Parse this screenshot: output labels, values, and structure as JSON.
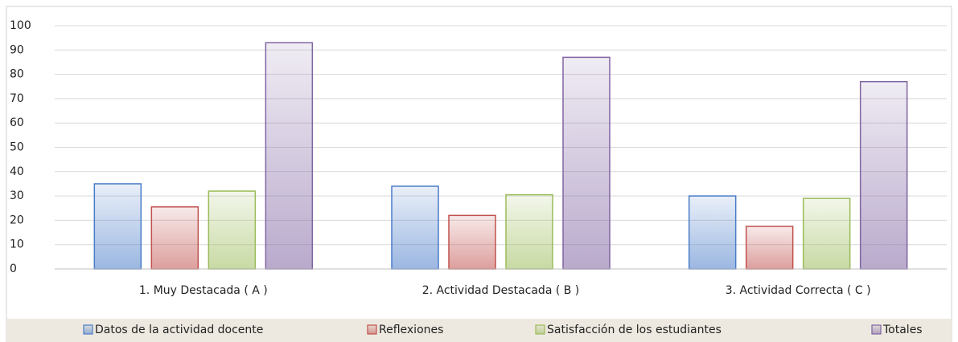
{
  "chart_data": {
    "type": "bar",
    "categories": [
      "1. Muy Destacada ( A )",
      "2. Actividad Destacada ( B )",
      "3. Actividad Correcta ( C )"
    ],
    "series": [
      {
        "name": "Datos de la actividad docente",
        "color": "#4a7cc9",
        "values": [
          35,
          34,
          30
        ]
      },
      {
        "name": "Reflexiones",
        "color": "#c0504d",
        "values": [
          25.5,
          22,
          17.5
        ]
      },
      {
        "name": "Satisfacción de los estudiantes",
        "color": "#9bbb59",
        "values": [
          32,
          30.5,
          29
        ]
      },
      {
        "name": "Totales",
        "color": "#8064a2",
        "values": [
          93,
          87,
          77
        ]
      }
    ],
    "ylim": [
      0,
      100
    ],
    "yticks": [
      0,
      10,
      20,
      30,
      40,
      50,
      60,
      70,
      80,
      90,
      100
    ],
    "grid": true,
    "legend": "bottom"
  }
}
